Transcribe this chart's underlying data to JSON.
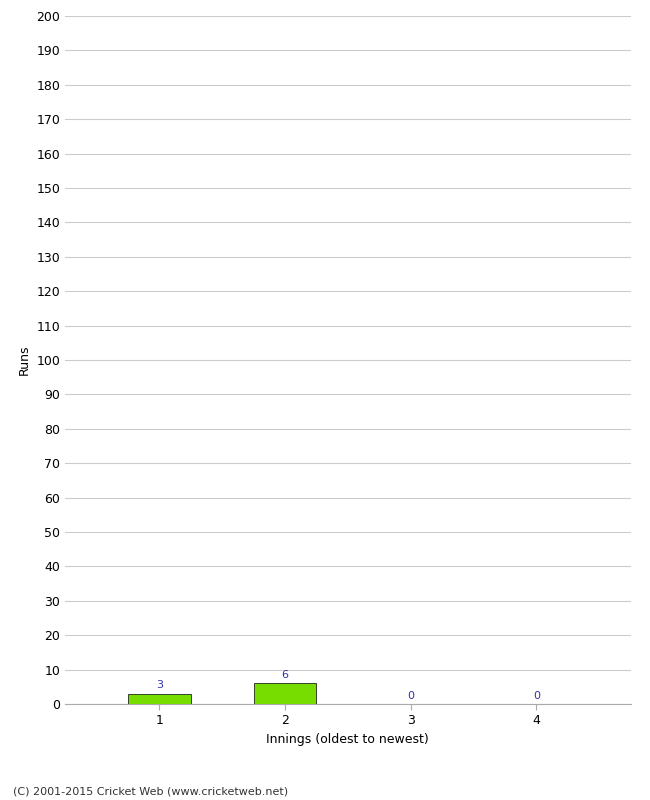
{
  "innings": [
    1,
    2,
    3,
    4
  ],
  "runs": [
    3,
    6,
    0,
    0
  ],
  "bar_color": "#77dd00",
  "bar_edge_color": "#000000",
  "annotation_color": "#3333aa",
  "xlabel": "Innings (oldest to newest)",
  "ylabel": "Runs",
  "ylim": [
    0,
    200
  ],
  "ytick_step": 10,
  "background_color": "#ffffff",
  "grid_color": "#cccccc",
  "footer": "(C) 2001-2015 Cricket Web (www.cricketweb.net)",
  "annotation_fontsize": 8,
  "axis_label_fontsize": 9,
  "tick_label_fontsize": 9,
  "footer_fontsize": 8
}
